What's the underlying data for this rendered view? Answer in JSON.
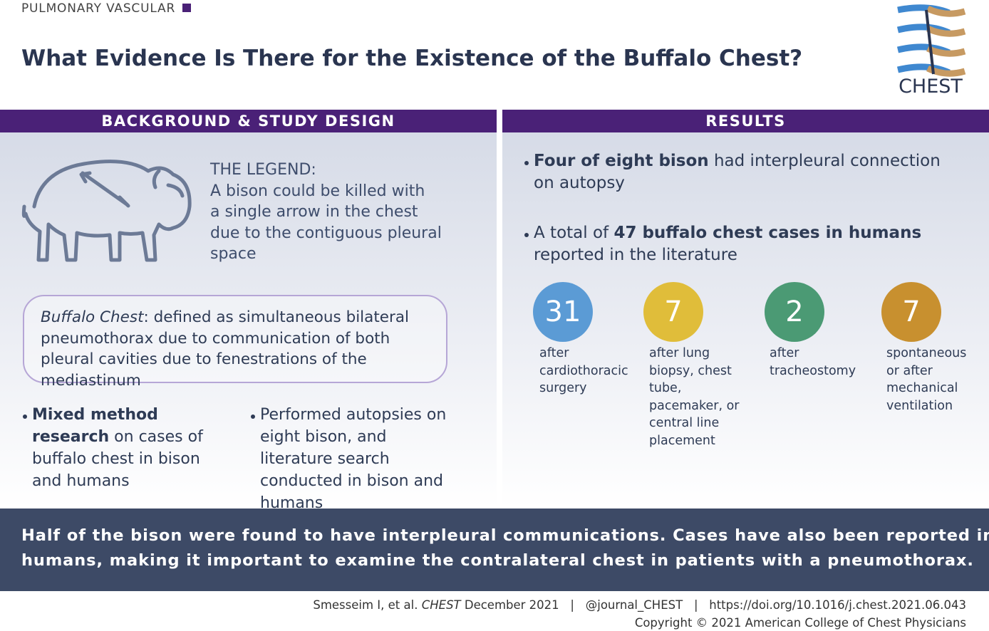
{
  "header": {
    "category": "PULMONARY VASCULAR",
    "title": "What Evidence Is There for the Existence of the Buffalo Chest?",
    "logo": "CHEST"
  },
  "background": {
    "heading": "BACKGROUND & STUDY DESIGN",
    "legend_title": "THE LEGEND:",
    "legend_lines": [
      "A bison could be killed with",
      "a single arrow in the chest",
      "due to the contiguous pleural",
      "space"
    ],
    "definition": {
      "term": "Buffalo Chest",
      "text": ": defined as simultaneous bilateral pneumothorax due to communication of both pleural cavities due to fenestrations of the mediastinum"
    },
    "bullets": [
      {
        "bold": "Mixed method research",
        "text": " on cases of buffalo chest in bison and humans"
      },
      {
        "bold": "",
        "text": "Performed autopsies on eight bison, and literature search conducted in bison and humans"
      }
    ]
  },
  "results": {
    "heading": "RESULTS",
    "bullets": [
      {
        "before": "",
        "bold": "Four of eight bison",
        "after": " had interpleural connection on autopsy"
      },
      {
        "before": "A total of ",
        "bold": "47 buffalo chest cases in humans",
        "after": " reported in the literature"
      }
    ],
    "stats": [
      {
        "number": 31,
        "color": "#5b9bd5",
        "caption": "after cardiothoracic surgery"
      },
      {
        "number": 7,
        "color": "#e0bd3a",
        "caption": "after lung biopsy, chest tube, pacemaker, or central line placement"
      },
      {
        "number": 2,
        "color": "#4b9a74",
        "caption": "after tracheostomy"
      },
      {
        "number": 7,
        "color": "#c8902f",
        "caption": "spontaneous or after mechanical ventilation"
      }
    ]
  },
  "summary": {
    "lines": [
      "Half of the bison were found to have interpleural communications. Cases have also been reported in",
      "humans, making it important to examine the contralateral chest in patients with a pneumothorax."
    ]
  },
  "footer": {
    "authors": "Smesseim I, et al. ",
    "journal": "CHEST",
    "date": " December 2021",
    "separator": "|",
    "handle": "@journal_CHEST",
    "doi": "https://doi.org/10.1016/j.chest.2021.06.043",
    "copyright": "Copyright © 2021 American College of Chest Physicians"
  }
}
